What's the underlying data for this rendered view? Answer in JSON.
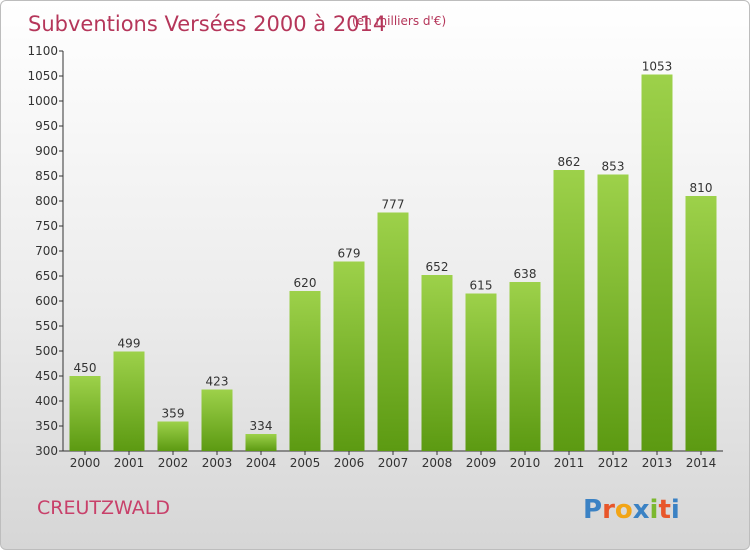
{
  "title": "Subventions Versées 2000 à 2014",
  "subtitle": "(en milliers d'€)",
  "commune": "CREUTZWALD",
  "logo_text": "Proxiti",
  "colors": {
    "title": "#b5365a",
    "bar_top": "#9dd14a",
    "bar_bottom": "#5c9a12",
    "logo_letters": [
      "#3b82c4",
      "#e8562a",
      "#f2a516",
      "#3b82c4",
      "#7cb82f",
      "#e8562a",
      "#3b82c4"
    ]
  },
  "chart_data": {
    "type": "bar",
    "title": "Subventions Versées 2000 à 2014",
    "subtitle": "(en milliers d'€)",
    "categories": [
      "2000",
      "2001",
      "2002",
      "2003",
      "2004",
      "2005",
      "2006",
      "2007",
      "2008",
      "2009",
      "2010",
      "2011",
      "2012",
      "2013",
      "2014"
    ],
    "values": [
      450,
      499,
      359,
      423,
      334,
      620,
      679,
      777,
      652,
      615,
      638,
      862,
      853,
      1053,
      810
    ],
    "ylim": [
      300,
      1100
    ],
    "yticks": [
      300,
      350,
      400,
      450,
      500,
      550,
      600,
      650,
      700,
      750,
      800,
      850,
      900,
      950,
      1000,
      1050,
      1100
    ],
    "grid": false,
    "legend": "none"
  }
}
